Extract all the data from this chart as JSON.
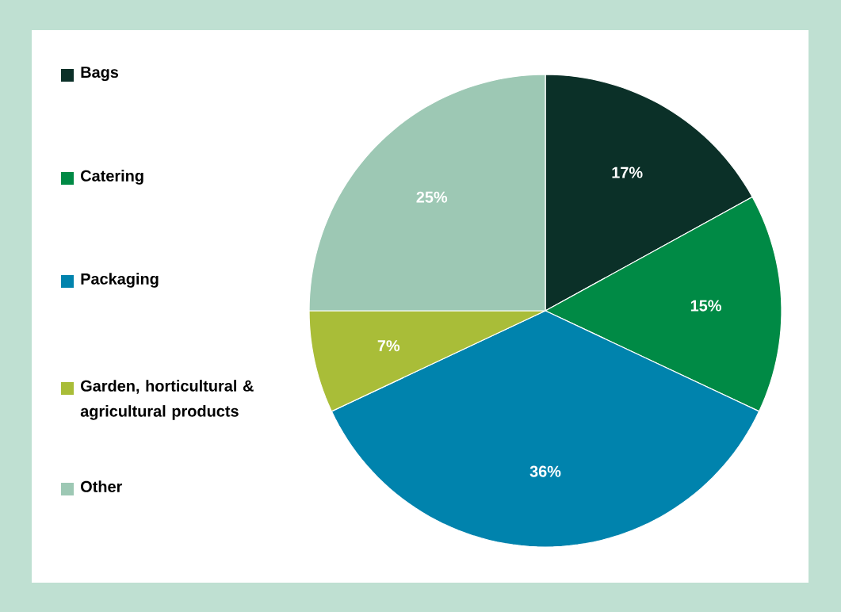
{
  "chart_data": {
    "type": "pie",
    "categories": [
      "Bags",
      "Catering",
      "Packaging",
      "Garden, horticultural & agricultural products",
      "Other"
    ],
    "values": [
      17,
      15,
      36,
      7,
      25
    ],
    "value_labels": [
      "17%",
      "15%",
      "36%",
      "7%",
      "25%"
    ],
    "colors": [
      "#0b3028",
      "#008a45",
      "#0083ad",
      "#a9bd38",
      "#9dc8b4"
    ],
    "legend": "left"
  }
}
